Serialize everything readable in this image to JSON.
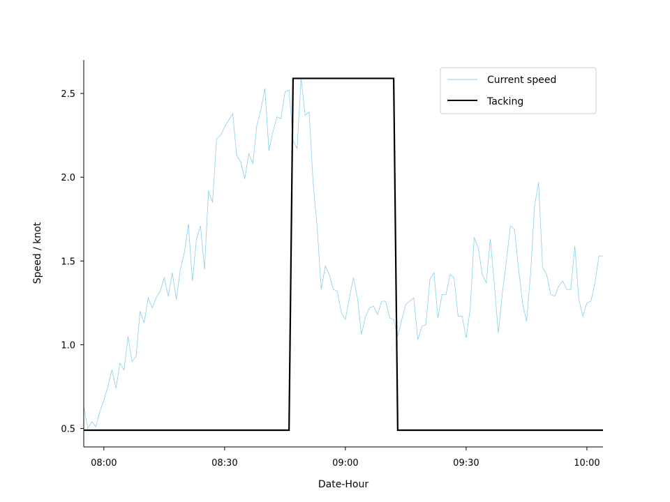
{
  "chart_data": {
    "type": "line",
    "xlabel": "Date-Hour",
    "ylabel": "Speed / knot",
    "xlim": [
      "07:55",
      "10:04"
    ],
    "ylim": [
      0.39,
      2.7
    ],
    "x_ticks": [
      "08:00",
      "08:30",
      "09:00",
      "09:30",
      "10:00"
    ],
    "y_ticks": [
      "0.5",
      "1.0",
      "1.5",
      "2.0",
      "2.5"
    ],
    "grid": false,
    "legend_position": "top-right",
    "series": [
      {
        "name": "Current speed",
        "color": "#87ceeb",
        "x": [
          "07:55",
          "07:56",
          "07:57",
          "07:58",
          "07:59",
          "08:00",
          "08:01",
          "08:02",
          "08:03",
          "08:04",
          "08:05",
          "08:06",
          "08:07",
          "08:08",
          "08:09",
          "08:10",
          "08:11",
          "08:12",
          "08:13",
          "08:14",
          "08:15",
          "08:16",
          "08:17",
          "08:18",
          "08:19",
          "08:20",
          "08:21",
          "08:22",
          "08:23",
          "08:24",
          "08:25",
          "08:26",
          "08:27",
          "08:28",
          "08:29",
          "08:30",
          "08:31",
          "08:32",
          "08:33",
          "08:34",
          "08:35",
          "08:36",
          "08:37",
          "08:38",
          "08:39",
          "08:40",
          "08:41",
          "08:42",
          "08:43",
          "08:44",
          "08:45",
          "08:46",
          "08:47",
          "08:48",
          "08:49",
          "08:50",
          "08:51",
          "08:52",
          "08:53",
          "08:54",
          "08:55",
          "08:56",
          "08:57",
          "08:58",
          "08:59",
          "09:00",
          "09:01",
          "09:02",
          "09:03",
          "09:04",
          "09:05",
          "09:06",
          "09:07",
          "09:08",
          "09:09",
          "09:10",
          "09:11",
          "09:12",
          "09:13",
          "09:14",
          "09:15",
          "09:16",
          "09:17",
          "09:18",
          "09:19",
          "09:20",
          "09:21",
          "09:22",
          "09:23",
          "09:24",
          "09:25",
          "09:26",
          "09:27",
          "09:28",
          "09:29",
          "09:30",
          "09:31",
          "09:32",
          "09:33",
          "09:34",
          "09:35",
          "09:36",
          "09:37",
          "09:38",
          "09:39",
          "09:40",
          "09:41",
          "09:42",
          "09:43",
          "09:44",
          "09:45",
          "09:46",
          "09:47",
          "09:48",
          "09:49",
          "09:50",
          "09:51",
          "09:52",
          "09:53",
          "09:54",
          "09:55",
          "09:56",
          "09:57",
          "09:58",
          "09:59",
          "10:00",
          "10:01",
          "10:02",
          "10:03",
          "10:04"
        ],
        "y": [
          0.63,
          0.5,
          0.54,
          0.51,
          0.6,
          0.67,
          0.75,
          0.85,
          0.74,
          0.89,
          0.85,
          1.05,
          0.9,
          0.93,
          1.2,
          1.13,
          1.28,
          1.22,
          1.28,
          1.32,
          1.4,
          1.29,
          1.43,
          1.27,
          1.45,
          1.55,
          1.72,
          1.38,
          1.63,
          1.71,
          1.45,
          1.92,
          1.85,
          2.23,
          2.25,
          2.3,
          2.34,
          2.38,
          2.13,
          2.09,
          1.99,
          2.14,
          2.08,
          2.31,
          2.4,
          2.53,
          2.16,
          2.27,
          2.36,
          2.35,
          2.51,
          2.52,
          2.22,
          2.17,
          2.59,
          2.37,
          2.39,
          1.96,
          1.7,
          1.33,
          1.47,
          1.42,
          1.33,
          1.32,
          1.19,
          1.15,
          1.28,
          1.4,
          1.28,
          1.06,
          1.17,
          1.22,
          1.23,
          1.18,
          1.26,
          1.26,
          1.16,
          1.15,
          1.05,
          1.15,
          1.24,
          1.26,
          1.28,
          1.03,
          1.11,
          1.12,
          1.39,
          1.43,
          1.16,
          1.3,
          1.3,
          1.42,
          1.4,
          1.17,
          1.17,
          1.04,
          1.21,
          1.64,
          1.58,
          1.42,
          1.37,
          1.63,
          1.36,
          1.07,
          1.31,
          1.5,
          1.71,
          1.69,
          1.46,
          1.25,
          1.14,
          1.42,
          1.83,
          1.97,
          1.46,
          1.42,
          1.3,
          1.29,
          1.35,
          1.38,
          1.33,
          1.33,
          1.59,
          1.27,
          1.17,
          1.25,
          1.26,
          1.37,
          1.53,
          1.53
        ]
      },
      {
        "name": "Tacking",
        "color": "#000000",
        "x": [
          "07:55",
          "08:46",
          "08:47",
          "09:12",
          "09:13",
          "10:04"
        ],
        "y": [
          0.49,
          0.49,
          2.59,
          2.59,
          0.49,
          0.49
        ]
      }
    ]
  }
}
